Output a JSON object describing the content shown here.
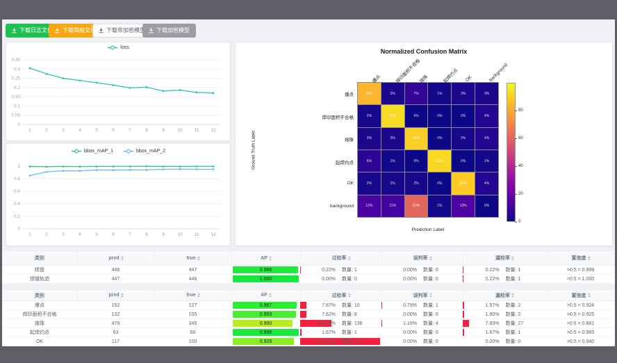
{
  "toolbar": {
    "buttons": [
      {
        "id": "download-log-file",
        "label": "下载日志文件",
        "bg": "#1fc052",
        "fg": "#ffffff",
        "border": "#1fc052"
      },
      {
        "id": "download-report-file",
        "label": "下载简报文件",
        "bg": "#f9a712",
        "fg": "#ffffff",
        "border": "#f9a712"
      },
      {
        "id": "download-unencrypted-model",
        "label": "下载非加密模型",
        "bg": "#ffffff",
        "fg": "#5c626b",
        "border": "#d9dce1"
      },
      {
        "id": "download-encrypted-model",
        "label": "下载加密模型",
        "bg": "#9c9ca4",
        "fg": "#ffffff",
        "border": "#9c9ca4"
      }
    ]
  },
  "chart_data": [
    {
      "type": "line",
      "title": "",
      "x": [
        1,
        2,
        3,
        4,
        5,
        6,
        7,
        8,
        9,
        10,
        11,
        12
      ],
      "series": [
        {
          "name": "loss",
          "color": "#2fc4ae",
          "values": [
            0.305,
            0.274,
            0.25,
            0.238,
            0.226,
            0.213,
            0.198,
            0.202,
            0.181,
            0.186,
            0.174,
            0.17
          ]
        }
      ],
      "ylim": [
        0,
        0.35
      ],
      "yticks": [
        0,
        0.05,
        0.1,
        0.15,
        0.2,
        0.25,
        0.3,
        0.35
      ],
      "grid": "horizontal",
      "legend_position": "top"
    },
    {
      "type": "line",
      "title": "",
      "x": [
        1,
        2,
        3,
        4,
        5,
        6,
        7,
        8,
        9,
        10,
        11,
        12
      ],
      "series": [
        {
          "name": "bbox_mAP_1",
          "color": "#3bbd8c",
          "values": [
            0.995,
            0.992,
            0.996,
            0.993,
            0.996,
            0.997,
            0.997,
            0.998,
            0.996,
            0.996,
            0.997,
            0.997
          ]
        },
        {
          "name": "bbox_mAP_2",
          "color": "#6db8f2",
          "values": [
            0.85,
            0.91,
            0.926,
            0.925,
            0.94,
            0.938,
            0.941,
            0.94,
            0.95,
            0.952,
            0.95,
            0.95
          ]
        }
      ],
      "ylim": [
        0,
        1
      ],
      "yticks": [
        0,
        0.2,
        0.4,
        0.6,
        0.8,
        1
      ],
      "grid": "horizontal",
      "legend_position": "top"
    },
    {
      "type": "heatmap",
      "title": "Normalized Confusion Matrix",
      "xlabel": "Prediction Label",
      "ylabel": "Ground Truth Label",
      "labels": [
        "爆点",
        "焊印面积不合格",
        "熔珠",
        "起焊灼点",
        "OK",
        "background"
      ],
      "matrix": [
        [
          84,
          3,
          7,
          1,
          3,
          3
        ],
        [
          2,
          93,
          0,
          0,
          0,
          4
        ],
        [
          3,
          3,
          90,
          0,
          2,
          4
        ],
        [
          6,
          1,
          0,
          92,
          0,
          1
        ],
        [
          2,
          2,
          2,
          0,
          89,
          4
        ],
        [
          12,
          11,
          61,
          1,
          13,
          0
        ]
      ],
      "unit": "%",
      "vmin": 0,
      "vmax": 100,
      "colormap": "plasma",
      "colorbar_ticks": [
        0,
        20,
        40,
        60,
        80
      ]
    }
  ],
  "tables": {
    "count_label": "数量:",
    "bar_red": "#f5203d",
    "headers": [
      {
        "label": "类别",
        "sortable": false
      },
      {
        "label": "pred",
        "sortable": true
      },
      {
        "label": "true",
        "sortable": true
      },
      {
        "label": "AP",
        "sortable": true
      },
      {
        "label": "过检率",
        "sortable": true
      },
      {
        "label": "误判率",
        "sortable": true
      },
      {
        "label": "漏检率",
        "sortable": true
      },
      {
        "label": "置信度",
        "sortable": true
      }
    ],
    "groups": [
      {
        "rows": [
          {
            "name": "焊盘",
            "pred": "446",
            "true": "447",
            "ap": "0.986",
            "ap_color": "#20ea3d",
            "over_pct": "0.22%",
            "over_cnt": "1",
            "mis_pct": "0.00%",
            "mis_cnt": "0",
            "miss_pct": "0.22%",
            "miss_cnt": "1",
            "conf": ">0.5 = 0.999"
          },
          {
            "name": "焊缝轨迹",
            "pred": "447",
            "true": "448",
            "ap": "1.000",
            "ap_color": "#15e83e",
            "over_pct": "0.00%",
            "over_cnt": "0",
            "mis_pct": "0.00%",
            "mis_cnt": "0",
            "miss_pct": "0.22%",
            "miss_cnt": "1",
            "conf": ">0.5 = 1.000"
          }
        ]
      },
      {
        "rows": [
          {
            "name": "爆点",
            "pred": "152",
            "true": "127",
            "ap": "0.967",
            "ap_color": "#2eec36",
            "over_pct": "7.87%",
            "over_cnt": "10",
            "mis_pct": "0.79%",
            "mis_cnt": "1",
            "miss_pct": "1.57%",
            "miss_cnt": "2",
            "conf": ">0.5 = 0.924"
          },
          {
            "name": "焊印面积不合格",
            "pred": "132",
            "true": "105",
            "ap": "0.953",
            "ap_color": "#49ee31",
            "over_pct": "7.62%",
            "over_cnt": "8",
            "mis_pct": "0.00%",
            "mis_cnt": "0",
            "miss_pct": "1.90%",
            "miss_cnt": "2",
            "conf": ">0.5 = 0.925"
          },
          {
            "name": "熔珠",
            "pred": "479",
            "true": "345",
            "ap": "0.900",
            "ap_color": "#b8ec1e",
            "over_pct": "39.42%",
            "over_cnt": "136",
            "mis_pct": "1.16%",
            "mis_cnt": "4",
            "miss_pct": "7.83%",
            "miss_cnt": "27",
            "conf": ">0.5 = 0.881"
          },
          {
            "name": "起焊灼点",
            "pred": "63",
            "true": "60",
            "ap": "0.996",
            "ap_color": "#19e940",
            "over_pct": "1.67%",
            "over_cnt": "1",
            "mis_pct": "0.00%",
            "mis_cnt": "0",
            "miss_pct": "1.67%",
            "miss_cnt": "1",
            "conf": ">0.5 = 0.965"
          },
          {
            "name": "OK",
            "pred": "117",
            "true": "100",
            "ap": "0.929",
            "ap_color": "#8bee24",
            "over_pct": "117.00%",
            "over_cnt": "117",
            "mis_pct": "0.00%",
            "mis_cnt": "0",
            "miss_pct": "0.00%",
            "miss_cnt": "0",
            "conf": ">0.5 = 0.940"
          }
        ]
      }
    ]
  }
}
